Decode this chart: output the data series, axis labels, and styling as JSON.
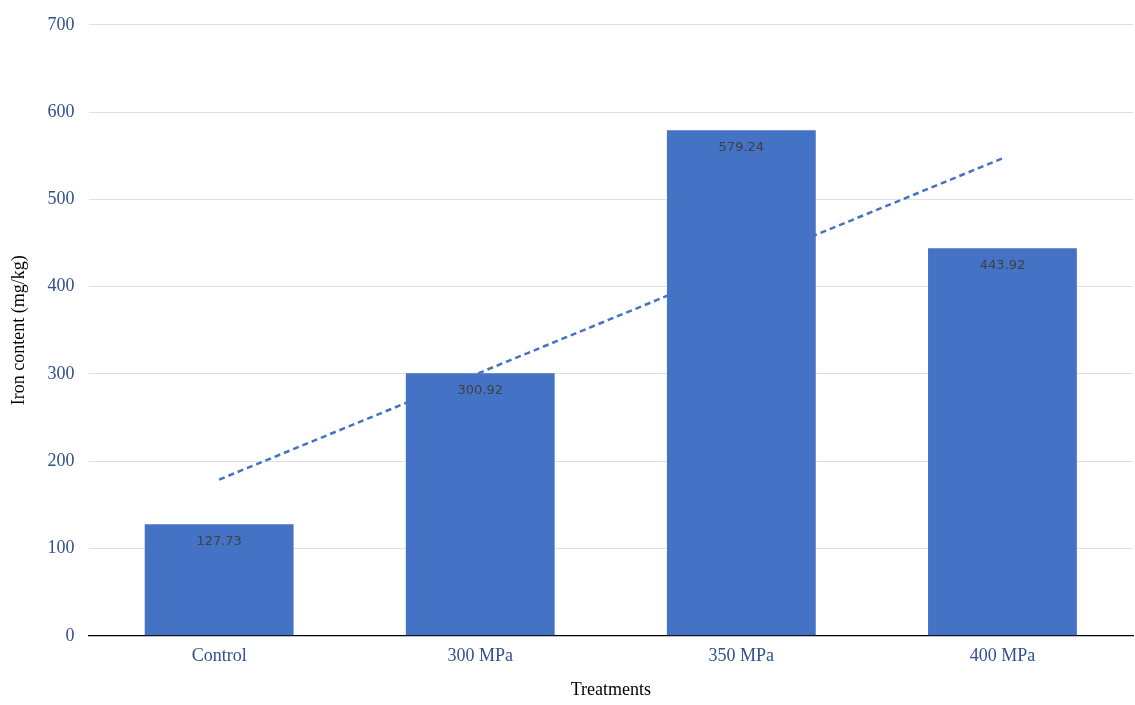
{
  "chart_data": {
    "type": "bar",
    "xlabel": "Treatments",
    "ylabel": "Iron content (mg/kg)",
    "categories": [
      "Control",
      "300 MPa",
      "350 MPa",
      "400 MPa"
    ],
    "series": [
      {
        "color": "#4472c4",
        "values": [
          127.73,
          300.92,
          579.24,
          443.92
        ],
        "value_labels": [
          "127.73",
          "300.92",
          "579.24",
          "443.92"
        ]
      },
      {
        "type": "line",
        "x": [
          "Control",
          "400 MPa"
        ],
        "values": [
          179,
          547
        ],
        "color": "#4472c4",
        "line_style": "dashed",
        "marker": "none"
      }
    ],
    "ylim": [
      0,
      700
    ],
    "yticks": [
      0,
      100,
      200,
      300,
      400,
      500,
      600,
      700
    ],
    "grid": "y"
  }
}
